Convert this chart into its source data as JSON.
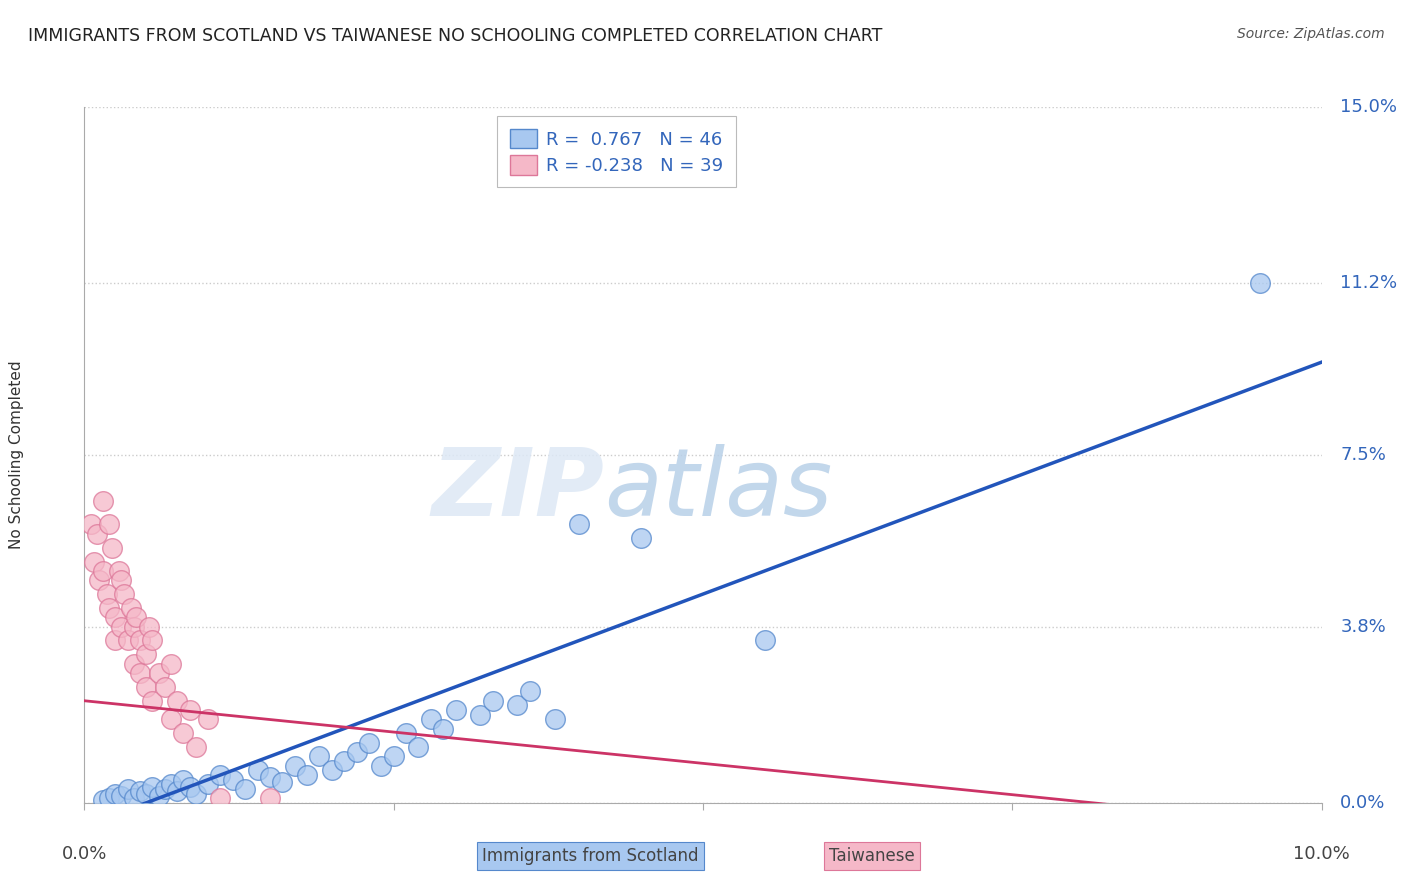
{
  "title": "IMMIGRANTS FROM SCOTLAND VS TAIWANESE NO SCHOOLING COMPLETED CORRELATION CHART",
  "source": "Source: ZipAtlas.com",
  "ylabel": "No Schooling Completed",
  "ytick_values": [
    0.0,
    3.8,
    7.5,
    11.2,
    15.0
  ],
  "xlim": [
    0.0,
    10.0
  ],
  "ylim": [
    0.0,
    15.0
  ],
  "scotland_color": "#a8c8f0",
  "taiwanese_color": "#f5b8c8",
  "scotland_edge": "#5588cc",
  "taiwanese_edge": "#dd7799",
  "regression_scotland_color": "#2255bb",
  "regression_taiwanese_color": "#cc3366",
  "legend_scotland_label": "Immigrants from Scotland",
  "legend_taiwanese_label": "Taiwanese",
  "scotland_R": 0.767,
  "scotland_N": 46,
  "taiwanese_R": -0.238,
  "taiwanese_N": 39,
  "watermark_zip": "ZIP",
  "watermark_atlas": "atlas",
  "scotland_line": [
    0.0,
    -0.5,
    10.0,
    9.5
  ],
  "taiwanese_line": [
    0.0,
    2.2,
    10.0,
    -0.5
  ],
  "scotland_points": [
    [
      0.15,
      0.05
    ],
    [
      0.2,
      0.1
    ],
    [
      0.25,
      0.2
    ],
    [
      0.3,
      0.15
    ],
    [
      0.35,
      0.3
    ],
    [
      0.4,
      0.1
    ],
    [
      0.45,
      0.25
    ],
    [
      0.5,
      0.2
    ],
    [
      0.55,
      0.35
    ],
    [
      0.6,
      0.15
    ],
    [
      0.65,
      0.3
    ],
    [
      0.7,
      0.4
    ],
    [
      0.75,
      0.25
    ],
    [
      0.8,
      0.5
    ],
    [
      0.85,
      0.35
    ],
    [
      0.9,
      0.2
    ],
    [
      1.0,
      0.4
    ],
    [
      1.1,
      0.6
    ],
    [
      1.2,
      0.5
    ],
    [
      1.3,
      0.3
    ],
    [
      1.4,
      0.7
    ],
    [
      1.5,
      0.55
    ],
    [
      1.6,
      0.45
    ],
    [
      1.7,
      0.8
    ],
    [
      1.8,
      0.6
    ],
    [
      1.9,
      1.0
    ],
    [
      2.0,
      0.7
    ],
    [
      2.1,
      0.9
    ],
    [
      2.2,
      1.1
    ],
    [
      2.3,
      1.3
    ],
    [
      2.4,
      0.8
    ],
    [
      2.5,
      1.0
    ],
    [
      2.6,
      1.5
    ],
    [
      2.7,
      1.2
    ],
    [
      2.8,
      1.8
    ],
    [
      2.9,
      1.6
    ],
    [
      3.0,
      2.0
    ],
    [
      3.2,
      1.9
    ],
    [
      3.3,
      2.2
    ],
    [
      3.5,
      2.1
    ],
    [
      3.6,
      2.4
    ],
    [
      3.8,
      1.8
    ],
    [
      4.0,
      6.0
    ],
    [
      4.5,
      5.7
    ],
    [
      5.5,
      3.5
    ],
    [
      9.5,
      11.2
    ]
  ],
  "taiwanese_points": [
    [
      0.05,
      6.0
    ],
    [
      0.08,
      5.2
    ],
    [
      0.1,
      5.8
    ],
    [
      0.12,
      4.8
    ],
    [
      0.15,
      6.5
    ],
    [
      0.15,
      5.0
    ],
    [
      0.18,
      4.5
    ],
    [
      0.2,
      6.0
    ],
    [
      0.2,
      4.2
    ],
    [
      0.22,
      5.5
    ],
    [
      0.25,
      4.0
    ],
    [
      0.25,
      3.5
    ],
    [
      0.28,
      5.0
    ],
    [
      0.3,
      4.8
    ],
    [
      0.3,
      3.8
    ],
    [
      0.32,
      4.5
    ],
    [
      0.35,
      3.5
    ],
    [
      0.38,
      4.2
    ],
    [
      0.4,
      3.8
    ],
    [
      0.4,
      3.0
    ],
    [
      0.42,
      4.0
    ],
    [
      0.45,
      3.5
    ],
    [
      0.45,
      2.8
    ],
    [
      0.5,
      3.2
    ],
    [
      0.5,
      2.5
    ],
    [
      0.52,
      3.8
    ],
    [
      0.55,
      2.2
    ],
    [
      0.55,
      3.5
    ],
    [
      0.6,
      2.8
    ],
    [
      0.65,
      2.5
    ],
    [
      0.7,
      3.0
    ],
    [
      0.7,
      1.8
    ],
    [
      0.75,
      2.2
    ],
    [
      0.8,
      1.5
    ],
    [
      0.85,
      2.0
    ],
    [
      0.9,
      1.2
    ],
    [
      1.0,
      1.8
    ],
    [
      1.1,
      0.1
    ],
    [
      1.5,
      0.1
    ]
  ]
}
